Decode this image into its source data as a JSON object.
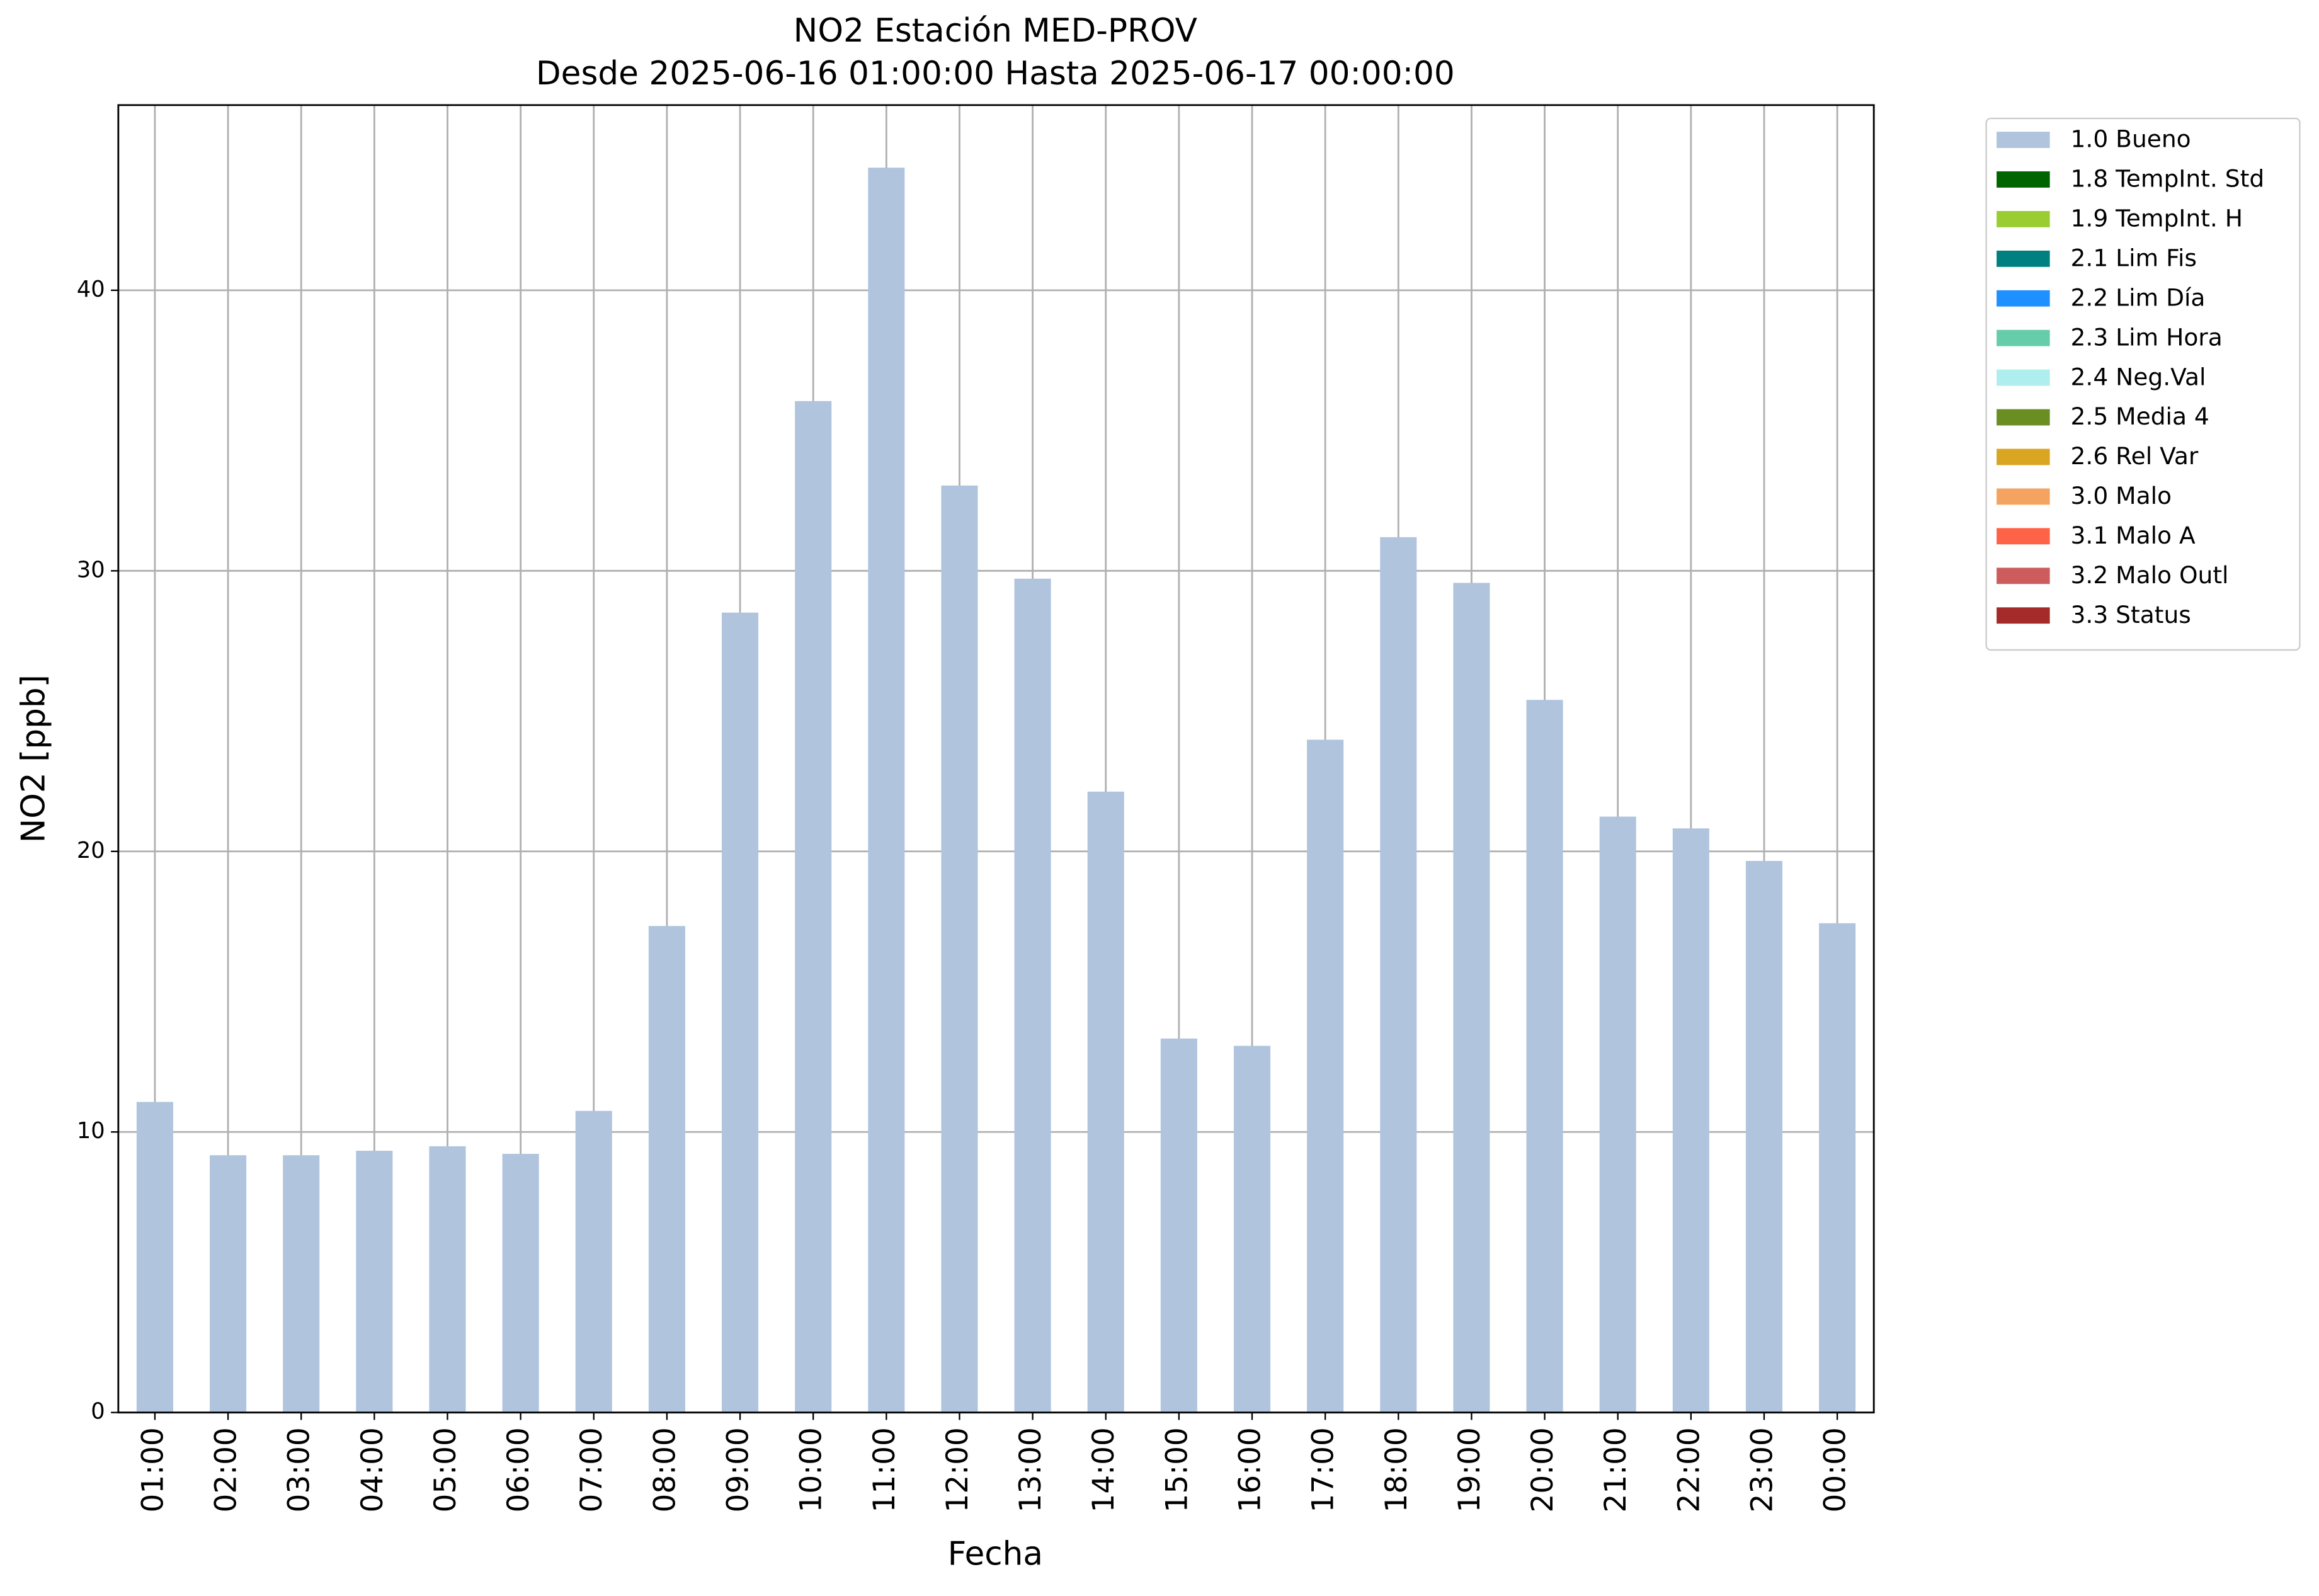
{
  "chart_data": {
    "type": "bar",
    "stacked": true,
    "title": "NO2 Estación MED-PROV",
    "subtitle": "Desde 2025-06-16 01:00:00 Hasta 2025-06-17 00:00:00",
    "x_label": "Fecha",
    "y_label": "NO2 [ppb]",
    "categories": [
      "01:00",
      "02:00",
      "03:00",
      "04:00",
      "05:00",
      "06:00",
      "07:00",
      "08:00",
      "09:00",
      "10:00",
      "11:00",
      "12:00",
      "13:00",
      "14:00",
      "15:00",
      "16:00",
      "17:00",
      "18:00",
      "19:00",
      "20:00",
      "21:00",
      "22:00",
      "23:00",
      "00:00"
    ],
    "series": [
      {
        "name": "1.0 Bueno",
        "color": "#b0c4de",
        "values": [
          11.07,
          9.17,
          9.17,
          9.33,
          9.49,
          9.22,
          10.75,
          17.34,
          28.51,
          36.05,
          44.37,
          33.04,
          29.72,
          22.13,
          13.33,
          13.07,
          23.98,
          31.2,
          29.57,
          25.4,
          21.24,
          20.82,
          19.66,
          17.44
        ]
      },
      {
        "name": "1.8 TempInt. Std",
        "color": "#006400",
        "values": [
          0,
          0,
          0,
          0,
          0,
          0,
          0,
          0,
          0,
          0,
          0,
          0,
          0,
          0,
          0,
          0,
          0,
          0,
          0,
          0,
          0,
          0,
          0,
          0
        ]
      },
      {
        "name": "1.9 TempInt. H",
        "color": "#9acd32",
        "values": [
          0,
          0,
          0,
          0,
          0,
          0,
          0,
          0,
          0,
          0,
          0,
          0,
          0,
          0,
          0,
          0,
          0,
          0,
          0,
          0,
          0,
          0,
          0,
          0
        ]
      },
      {
        "name": "2.1 Lim Fis",
        "color": "#008080",
        "values": [
          0,
          0,
          0,
          0,
          0,
          0,
          0,
          0,
          0,
          0,
          0,
          0,
          0,
          0,
          0,
          0,
          0,
          0,
          0,
          0,
          0,
          0,
          0,
          0
        ]
      },
      {
        "name": "2.2 Lim Día",
        "color": "#1e90ff",
        "values": [
          0,
          0,
          0,
          0,
          0,
          0,
          0,
          0,
          0,
          0,
          0,
          0,
          0,
          0,
          0,
          0,
          0,
          0,
          0,
          0,
          0,
          0,
          0,
          0
        ]
      },
      {
        "name": "2.3 Lim Hora",
        "color": "#66cdaa",
        "values": [
          0,
          0,
          0,
          0,
          0,
          0,
          0,
          0,
          0,
          0,
          0,
          0,
          0,
          0,
          0,
          0,
          0,
          0,
          0,
          0,
          0,
          0,
          0,
          0
        ]
      },
      {
        "name": "2.4 Neg.Val",
        "color": "#afeeee",
        "values": [
          0,
          0,
          0,
          0,
          0,
          0,
          0,
          0,
          0,
          0,
          0,
          0,
          0,
          0,
          0,
          0,
          0,
          0,
          0,
          0,
          0,
          0,
          0,
          0
        ]
      },
      {
        "name": "2.5 Media 4",
        "color": "#6b8e23",
        "values": [
          0,
          0,
          0,
          0,
          0,
          0,
          0,
          0,
          0,
          0,
          0,
          0,
          0,
          0,
          0,
          0,
          0,
          0,
          0,
          0,
          0,
          0,
          0,
          0
        ]
      },
      {
        "name": "2.6 Rel Var",
        "color": "#daa520",
        "values": [
          0,
          0,
          0,
          0,
          0,
          0,
          0,
          0,
          0,
          0,
          0,
          0,
          0,
          0,
          0,
          0,
          0,
          0,
          0,
          0,
          0,
          0,
          0,
          0
        ]
      },
      {
        "name": "3.0 Malo",
        "color": "#f4a460",
        "values": [
          0,
          0,
          0,
          0,
          0,
          0,
          0,
          0,
          0,
          0,
          0,
          0,
          0,
          0,
          0,
          0,
          0,
          0,
          0,
          0,
          0,
          0,
          0,
          0
        ]
      },
      {
        "name": "3.1 Malo A",
        "color": "#ff6347",
        "values": [
          0,
          0,
          0,
          0,
          0,
          0,
          0,
          0,
          0,
          0,
          0,
          0,
          0,
          0,
          0,
          0,
          0,
          0,
          0,
          0,
          0,
          0,
          0,
          0
        ]
      },
      {
        "name": "3.2 Malo Outl",
        "color": "#cd5c5c",
        "values": [
          0,
          0,
          0,
          0,
          0,
          0,
          0,
          0,
          0,
          0,
          0,
          0,
          0,
          0,
          0,
          0,
          0,
          0,
          0,
          0,
          0,
          0,
          0,
          0
        ]
      },
      {
        "name": "3.3 Status",
        "color": "#a52a2a",
        "values": [
          0,
          0,
          0,
          0,
          0,
          0,
          0,
          0,
          0,
          0,
          0,
          0,
          0,
          0,
          0,
          0,
          0,
          0,
          0,
          0,
          0,
          0,
          0,
          0
        ]
      }
    ],
    "ylim": [
      0,
      46.6
    ],
    "yticks": [
      0,
      10,
      20,
      30,
      40
    ],
    "grid": true,
    "legend": "outside-right"
  }
}
